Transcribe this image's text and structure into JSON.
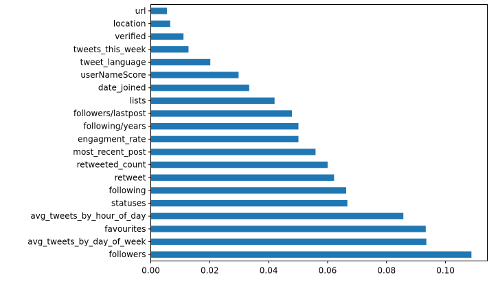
{
  "chart_data": {
    "type": "bar",
    "orientation": "horizontal",
    "bar_color": "#1f77b4",
    "categories": [
      "followers",
      "avg_tweets_by_day_of_week",
      "favourites",
      "avg_tweets_by_hour_of_day",
      "statuses",
      "following",
      "retweet",
      "retweeted_count",
      "most_recent_post",
      "engagment_rate",
      "following/years",
      "followers/lastpost",
      "lists",
      "date_joined",
      "userNameScore",
      "tweet_language",
      "tweets_this_week",
      "verified",
      "location",
      "url"
    ],
    "values": [
      0.1088,
      0.0935,
      0.0933,
      0.0857,
      0.0667,
      0.0663,
      0.0622,
      0.06,
      0.0559,
      0.0501,
      0.0501,
      0.0479,
      0.042,
      0.0334,
      0.0298,
      0.0202,
      0.0128,
      0.0111,
      0.0066,
      0.0055
    ],
    "xlim": [
      0,
      0.1142
    ],
    "xticks": [
      0.0,
      0.02,
      0.04,
      0.06,
      0.08,
      0.1
    ],
    "xtick_labels": [
      "0.00",
      "0.02",
      "0.04",
      "0.06",
      "0.08",
      "0.10"
    ],
    "title": "",
    "xlabel": "",
    "ylabel": "",
    "grid": false,
    "legend": "none"
  }
}
